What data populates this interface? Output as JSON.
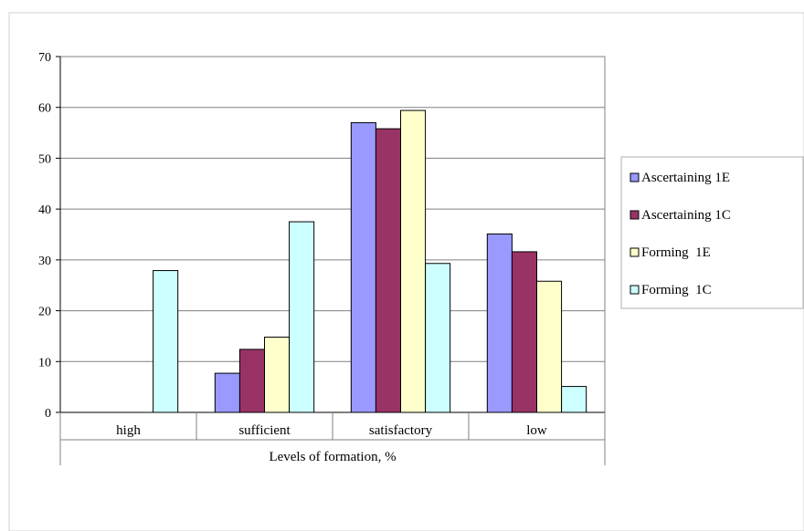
{
  "chart_data": {
    "type": "bar",
    "categories": [
      "high",
      "sufficient",
      "satisfactory",
      "low"
    ],
    "series": [
      {
        "name": "Ascertaining 1E",
        "color": "#9999ff",
        "values": [
          0,
          7.7,
          57.0,
          35.1
        ]
      },
      {
        "name": "Ascertaining 1C",
        "color": "#993366",
        "values": [
          0,
          12.4,
          55.8,
          31.6
        ]
      },
      {
        "name": "Forming  1E",
        "color": "#ffffcc",
        "values": [
          0,
          14.8,
          59.4,
          25.8
        ]
      },
      {
        "name": "Forming  1C",
        "color": "#ccffff",
        "values": [
          27.9,
          37.5,
          29.3,
          5.1
        ]
      }
    ],
    "title": "",
    "xlabel": "Levels of formation, %",
    "ylabel": "",
    "ylim": [
      0,
      70
    ],
    "yticks": [
      0,
      10,
      20,
      30,
      40,
      50,
      60,
      70
    ],
    "grid": true,
    "legend_position": "right"
  }
}
